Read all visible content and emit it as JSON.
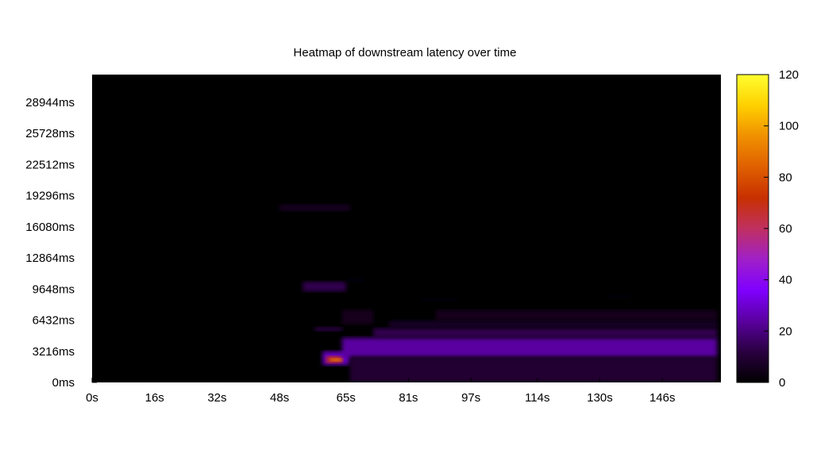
{
  "chart_data": {
    "type": "heatmap",
    "title": "Heatmap of downstream latency over time",
    "xlabel": "",
    "ylabel": "",
    "x_ticks": [
      "0s",
      "16s",
      "32s",
      "48s",
      "65s",
      "81s",
      "97s",
      "114s",
      "130s",
      "146s"
    ],
    "x_tick_values": [
      0,
      16,
      32,
      48,
      65,
      81,
      97,
      114,
      130,
      146
    ],
    "xlim": [
      0,
      161
    ],
    "y_ticks": [
      "0ms",
      "3216ms",
      "6432ms",
      "9648ms",
      "12864ms",
      "16080ms",
      "19296ms",
      "22512ms",
      "25728ms",
      "28944ms"
    ],
    "y_tick_values": [
      0,
      3216,
      6432,
      9648,
      12864,
      16080,
      19296,
      22512,
      25728,
      28944
    ],
    "ylim": [
      0,
      31800
    ],
    "colorbar": {
      "ticks": [
        "0",
        "20",
        "40",
        "60",
        "80",
        "100",
        "120"
      ],
      "tick_values": [
        0,
        20,
        40,
        60,
        80,
        100,
        120
      ],
      "range": [
        0,
        120
      ],
      "palette": [
        "#000000",
        "#2a0040",
        "#5a00a0",
        "#8000ff",
        "#a020c8",
        "#c03060",
        "#c83000",
        "#e06000",
        "#f09000",
        "#ffd000",
        "#ffff30"
      ]
    },
    "background_color": "#000000",
    "regions": [
      {
        "x": [
          48,
          66
        ],
        "y": [
          17700,
          18400
        ],
        "value": 6
      },
      {
        "x": [
          54,
          65
        ],
        "y": [
          9400,
          10400
        ],
        "value": 14
      },
      {
        "x": [
          65,
          70
        ],
        "y": [
          10400,
          10700
        ],
        "value": 4
      },
      {
        "x": [
          57,
          64
        ],
        "y": [
          5300,
          5700
        ],
        "value": 14
      },
      {
        "x": [
          64,
          72
        ],
        "y": [
          6000,
          7500
        ],
        "value": 5
      },
      {
        "x": [
          59,
          66
        ],
        "y": [
          1800,
          3200
        ],
        "value": 28
      },
      {
        "x": [
          60,
          64
        ],
        "y": [
          2000,
          2700
        ],
        "value": 70
      },
      {
        "x": [
          61,
          64
        ],
        "y": [
          2200,
          2500
        ],
        "value": 95
      },
      {
        "x": [
          64,
          160
        ],
        "y": [
          2600,
          4600
        ],
        "value": 24
      },
      {
        "x": [
          72,
          160
        ],
        "y": [
          4600,
          5600
        ],
        "value": 14
      },
      {
        "x": [
          76,
          160
        ],
        "y": [
          5600,
          6400
        ],
        "value": 7
      },
      {
        "x": [
          88,
          160
        ],
        "y": [
          6400,
          7500
        ],
        "value": 5
      },
      {
        "x": [
          84,
          94
        ],
        "y": [
          8500,
          8700
        ],
        "value": 4
      },
      {
        "x": [
          131,
          138
        ],
        "y": [
          8800,
          9000
        ],
        "value": 4
      },
      {
        "x": [
          66,
          160
        ],
        "y": [
          0,
          2600
        ],
        "value": 9
      }
    ]
  }
}
